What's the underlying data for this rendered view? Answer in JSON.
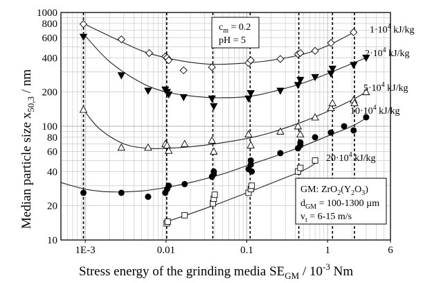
{
  "chart_data": {
    "type": "scatter",
    "xscale": "log",
    "yscale": "log",
    "xlim": [
      0.0005,
      6
    ],
    "ylim": [
      10,
      1000
    ],
    "grid": true,
    "xlabel": {
      "main": "Stress energy of the grinding media SE",
      "sub": "GM",
      "tail": " / 10",
      "sup": "-3",
      "end": " Nm"
    },
    "ylabel": {
      "main": "Median particle size  x",
      "sub": "50,3",
      "tail": " / nm"
    },
    "x_ticks": [
      {
        "value": 0.001,
        "label": "1E-3"
      },
      {
        "value": 0.01,
        "label": "0.01"
      },
      {
        "value": 0.1,
        "label": "0.1"
      },
      {
        "value": 1,
        "label": "1"
      },
      {
        "value": 6,
        "label": "6"
      }
    ],
    "y_ticks": [
      {
        "value": 10,
        "label": "10"
      },
      {
        "value": 20,
        "label": "20"
      },
      {
        "value": 40,
        "label": "40"
      },
      {
        "value": 60,
        "label": "60"
      },
      {
        "value": 80,
        "label": "80"
      },
      {
        "value": 100,
        "label": "100"
      },
      {
        "value": 200,
        "label": "200"
      },
      {
        "value": 400,
        "label": "400"
      },
      {
        "value": 600,
        "label": "600"
      },
      {
        "value": 800,
        "label": "800"
      },
      {
        "value": 1000,
        "label": "1000"
      }
    ],
    "vertical_dashed_lines": [
      0.00095,
      0.0102,
      0.038,
      0.11,
      0.44,
      1.15,
      2.15
    ],
    "series": [
      {
        "name": "1·10⁴ kJ/kg",
        "label": {
          "pre": "1·10",
          "sup": "4",
          "post": " kJ/kg"
        },
        "marker": "diamond-open",
        "points": [
          [
            0.00095,
            790
          ],
          [
            0.0028,
            580
          ],
          [
            0.0062,
            440
          ],
          [
            0.0098,
            410
          ],
          [
            0.0103,
            400
          ],
          [
            0.0108,
            380
          ],
          [
            0.0165,
            310
          ],
          [
            0.037,
            330
          ],
          [
            0.105,
            360
          ],
          [
            0.112,
            380
          ],
          [
            0.26,
            390
          ],
          [
            0.43,
            430
          ],
          [
            0.46,
            440
          ],
          [
            0.7,
            460
          ],
          [
            1.1,
            540
          ],
          [
            2.1,
            670
          ]
        ],
        "fit": [
          [
            0.00095,
            800
          ],
          [
            0.002,
            620
          ],
          [
            0.005,
            460
          ],
          [
            0.01,
            400
          ],
          [
            0.02,
            365
          ],
          [
            0.04,
            350
          ],
          [
            0.1,
            360
          ],
          [
            0.2,
            380
          ],
          [
            0.5,
            430
          ],
          [
            1,
            510
          ],
          [
            2.2,
            680
          ]
        ]
      },
      {
        "name": "2·10⁴ kJ/kg",
        "label": {
          "pre": "2·10",
          "sup": "4",
          "post": " kJ/kg"
        },
        "marker": "triangle-down-filled",
        "points": [
          [
            0.00095,
            610
          ],
          [
            0.0028,
            280
          ],
          [
            0.006,
            205
          ],
          [
            0.0098,
            210
          ],
          [
            0.0103,
            200
          ],
          [
            0.0108,
            190
          ],
          [
            0.0165,
            180
          ],
          [
            0.037,
            175
          ],
          [
            0.039,
            150
          ],
          [
            0.105,
            175
          ],
          [
            0.112,
            195
          ],
          [
            0.26,
            205
          ],
          [
            0.43,
            230
          ],
          [
            0.46,
            255
          ],
          [
            0.7,
            270
          ],
          [
            1.1,
            290
          ],
          [
            1.15,
            320
          ],
          [
            2.1,
            345
          ],
          [
            3.0,
            400
          ]
        ],
        "fit": [
          [
            0.00095,
            650
          ],
          [
            0.002,
            370
          ],
          [
            0.005,
            240
          ],
          [
            0.01,
            200
          ],
          [
            0.02,
            185
          ],
          [
            0.04,
            178
          ],
          [
            0.1,
            182
          ],
          [
            0.2,
            200
          ],
          [
            0.5,
            240
          ],
          [
            1,
            290
          ],
          [
            2,
            355
          ],
          [
            3,
            400
          ]
        ]
      },
      {
        "name": "5·10⁴ kJ/kg",
        "label": {
          "pre": "5·10",
          "sup": "4",
          "post": " kJ/kg"
        },
        "marker": "triangle-up-open",
        "points": [
          [
            0.00095,
            140
          ],
          [
            0.0028,
            65
          ],
          [
            0.006,
            65
          ],
          [
            0.0098,
            70
          ],
          [
            0.0103,
            68
          ],
          [
            0.0108,
            61
          ],
          [
            0.017,
            70
          ],
          [
            0.037,
            75
          ],
          [
            0.039,
            60
          ],
          [
            0.105,
            85
          ],
          [
            0.112,
            68
          ],
          [
            0.26,
            90
          ],
          [
            0.43,
            100
          ],
          [
            0.46,
            85
          ],
          [
            0.7,
            120
          ],
          [
            1.1,
            145
          ],
          [
            1.15,
            160
          ],
          [
            2.1,
            170
          ],
          [
            2.15,
            160
          ],
          [
            3.0,
            200
          ]
        ],
        "fit": [
          [
            0.00095,
            140
          ],
          [
            0.0015,
            95
          ],
          [
            0.003,
            70
          ],
          [
            0.006,
            64
          ],
          [
            0.01,
            64
          ],
          [
            0.02,
            66
          ],
          [
            0.04,
            70
          ],
          [
            0.1,
            78
          ],
          [
            0.2,
            88
          ],
          [
            0.5,
            110
          ],
          [
            1,
            135
          ],
          [
            2,
            170
          ],
          [
            3,
            200
          ]
        ]
      },
      {
        "name": "10·10⁴ kJ/kg",
        "label": {
          "pre": "10·10",
          "sup": "4",
          "post": " kJ/kg"
        },
        "marker": "circle-filled",
        "points": [
          [
            0.00095,
            26
          ],
          [
            0.0028,
            26
          ],
          [
            0.006,
            24
          ],
          [
            0.0098,
            26
          ],
          [
            0.0103,
            28
          ],
          [
            0.0108,
            30
          ],
          [
            0.017,
            31
          ],
          [
            0.037,
            36
          ],
          [
            0.039,
            38
          ],
          [
            0.039,
            40
          ],
          [
            0.105,
            42
          ],
          [
            0.112,
            46
          ],
          [
            0.112,
            50
          ],
          [
            0.115,
            40
          ],
          [
            0.26,
            58
          ],
          [
            0.43,
            64
          ],
          [
            0.46,
            68
          ],
          [
            0.46,
            72
          ],
          [
            0.7,
            80
          ],
          [
            1.1,
            88
          ],
          [
            1.6,
            100
          ],
          [
            2.1,
            92
          ],
          [
            3.0,
            120
          ]
        ],
        "fit": [
          [
            0.0005,
            32
          ],
          [
            0.001,
            28
          ],
          [
            0.002,
            26.5
          ],
          [
            0.005,
            27
          ],
          [
            0.01,
            29
          ],
          [
            0.02,
            32
          ],
          [
            0.05,
            38
          ],
          [
            0.1,
            45
          ],
          [
            0.2,
            53
          ],
          [
            0.5,
            67
          ],
          [
            1,
            82
          ],
          [
            2,
            100
          ],
          [
            3,
            118
          ]
        ]
      },
      {
        "name": "20·10⁴ kJ/kg",
        "label": {
          "pre": "20·10",
          "sup": "4",
          "post": " kJ/kg"
        },
        "marker": "square-open",
        "points": [
          [
            0.0102,
            14
          ],
          [
            0.0105,
            14.5
          ],
          [
            0.017,
            16.5
          ],
          [
            0.038,
            21
          ],
          [
            0.039,
            23
          ],
          [
            0.04,
            25
          ],
          [
            0.105,
            26
          ],
          [
            0.112,
            28
          ],
          [
            0.115,
            30
          ],
          [
            0.43,
            40
          ],
          [
            0.46,
            43
          ],
          [
            0.7,
            50
          ]
        ],
        "fit": [
          [
            0.0102,
            14.5
          ],
          [
            0.02,
            17
          ],
          [
            0.05,
            21.5
          ],
          [
            0.1,
            26
          ],
          [
            0.2,
            31.5
          ],
          [
            0.5,
            41
          ],
          [
            0.7,
            47
          ]
        ]
      }
    ],
    "annotations": {
      "params": [
        "c",
        "m",
        " = 0.2",
        "pH = 5"
      ],
      "gm": [
        "GM: ZrO",
        "2",
        "(Y",
        "2",
        "O",
        "3",
        ")",
        "d",
        "GM",
        " = 100-1300 µm",
        "v",
        "t",
        " = 6-15 m/s"
      ]
    }
  }
}
